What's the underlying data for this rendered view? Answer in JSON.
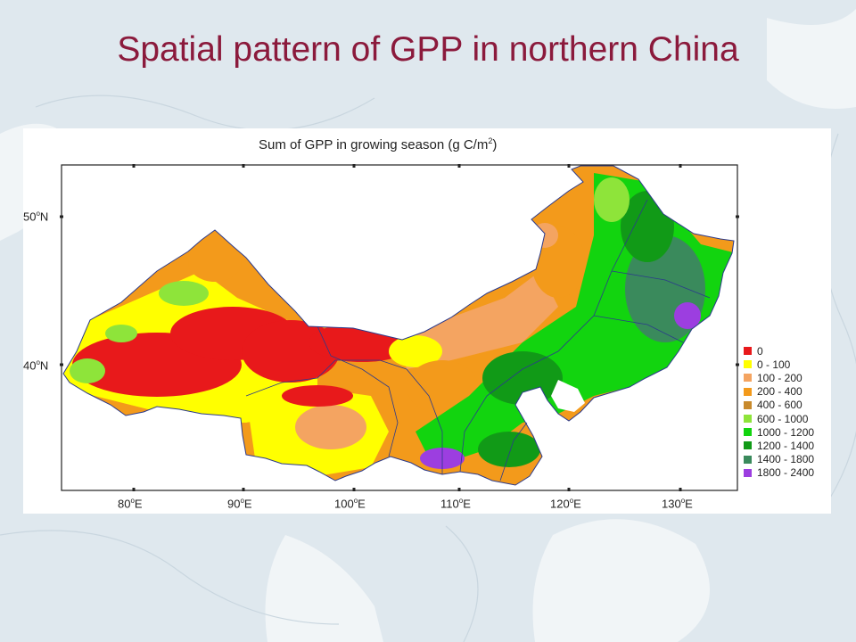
{
  "slide": {
    "title": "Spatial pattern of GPP in northern China"
  },
  "figure": {
    "title_main": "Sum of GPP  in growing season (g C/m",
    "title_sup": "2",
    "title_end": ")",
    "lat_labels": [
      {
        "deg": "50",
        "hemi": "N"
      },
      {
        "deg": "40",
        "hemi": "N"
      }
    ],
    "lon_labels": [
      {
        "deg": "80",
        "hemi": "E"
      },
      {
        "deg": "90",
        "hemi": "E"
      },
      {
        "deg": "100",
        "hemi": "E"
      },
      {
        "deg": "110",
        "hemi": "E"
      },
      {
        "deg": "120",
        "hemi": "E"
      },
      {
        "deg": "130",
        "hemi": "E"
      }
    ],
    "degree_mark": "o",
    "legend": [
      {
        "label": "0",
        "color": "#e8191b"
      },
      {
        "label": "0 - 100",
        "color": "#ffff00"
      },
      {
        "label": "100 - 200",
        "color": "#f4a461"
      },
      {
        "label": "200 - 400",
        "color": "#f39a1b"
      },
      {
        "label": "400 - 600",
        "color": "#c88a2c"
      },
      {
        "label": "600 - 1000",
        "color": "#8ee43a"
      },
      {
        "label": "1000 - 1200",
        "color": "#12d40f"
      },
      {
        "label": "1200 - 1400",
        "color": "#119a17"
      },
      {
        "label": "1400 - 1800",
        "color": "#3a8a5c"
      },
      {
        "label": "1800 - 2400",
        "color": "#9c3ee0"
      }
    ]
  }
}
